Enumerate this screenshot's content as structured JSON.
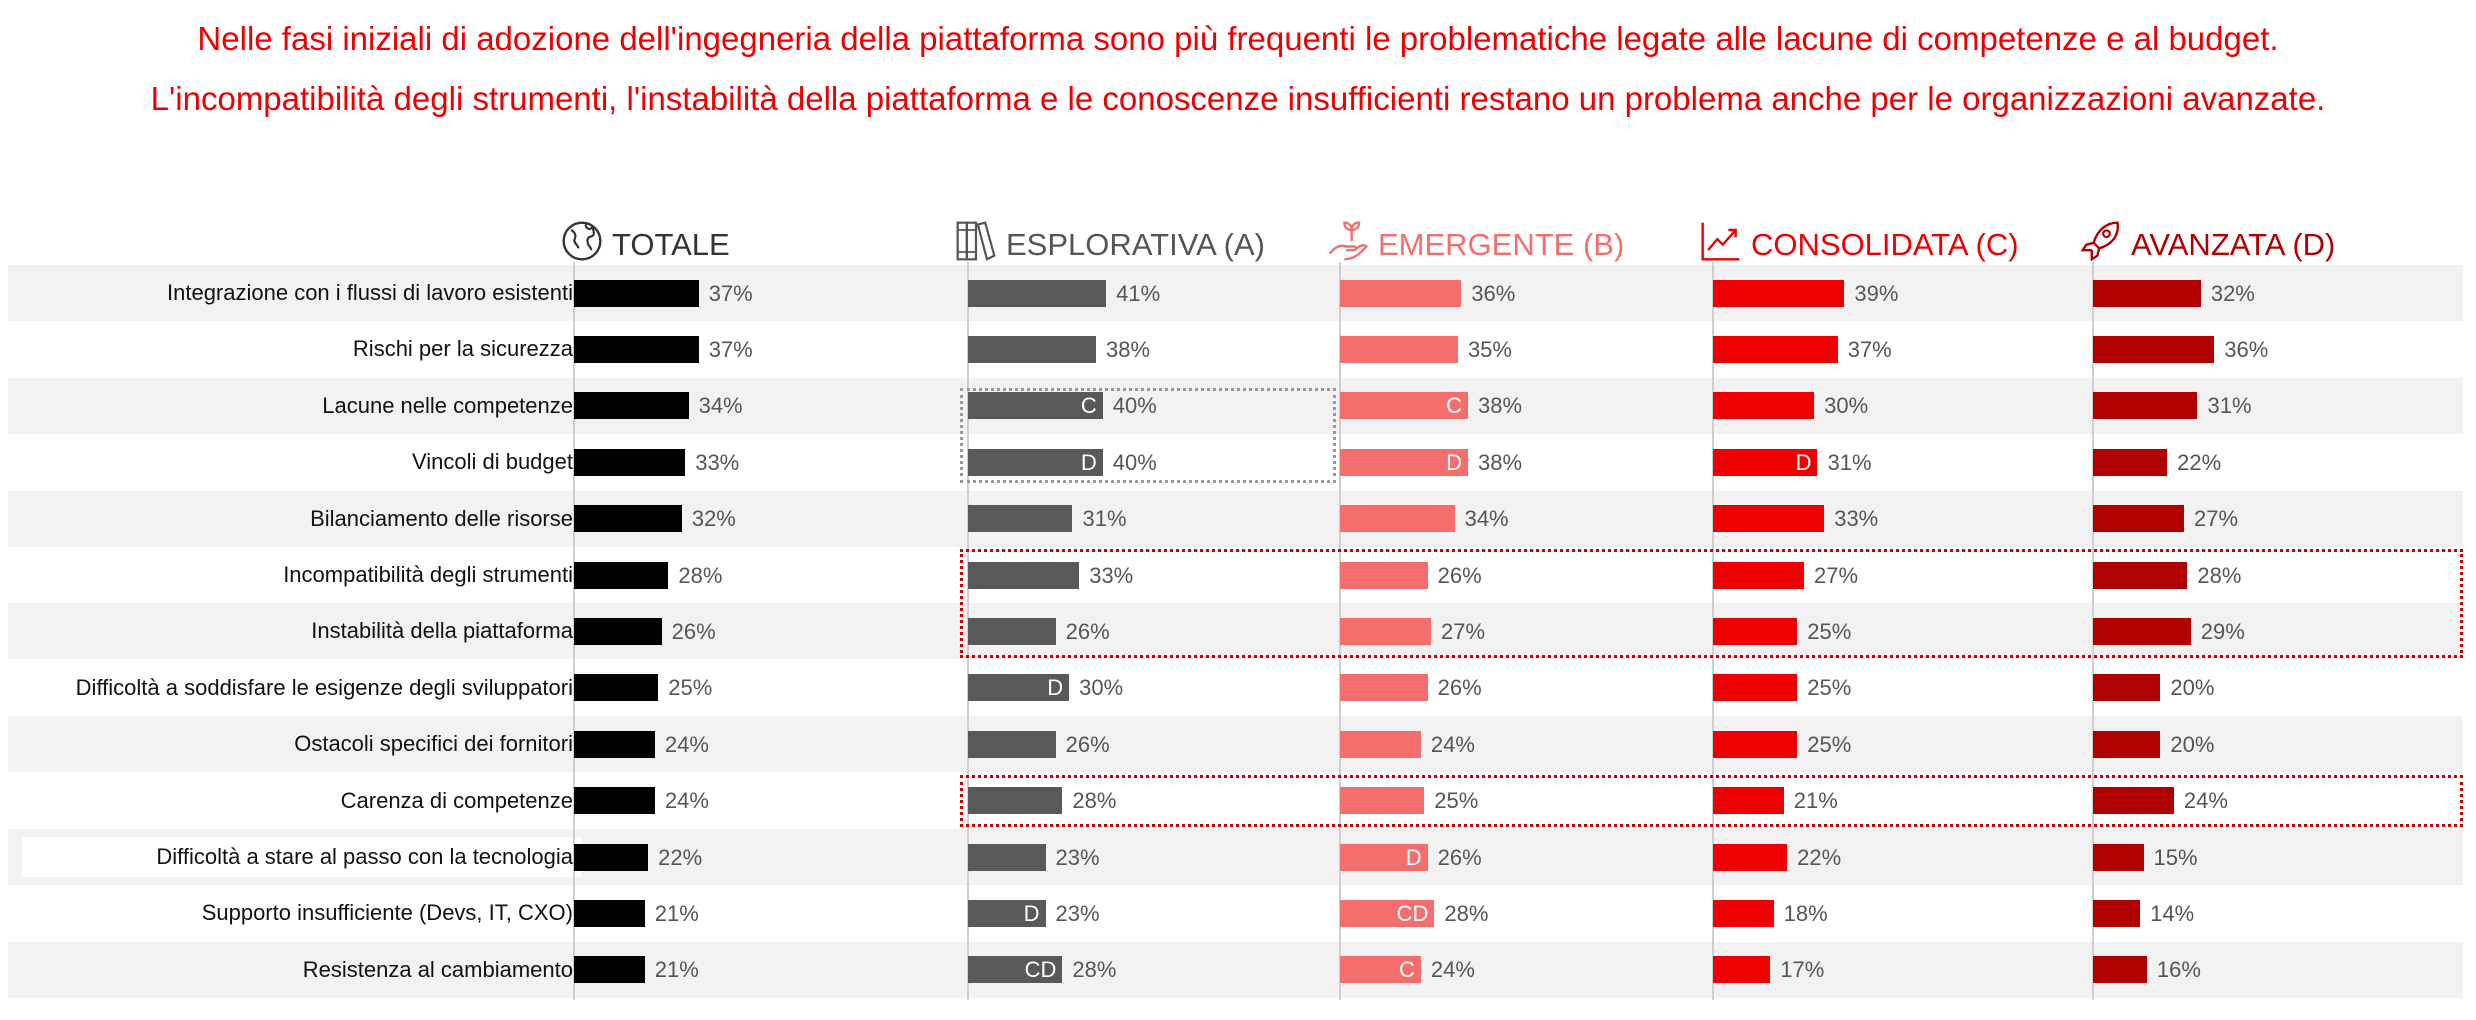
{
  "titles": [
    "Nelle fasi iniziali di adozione dell'ingegneria della piattaforma sono più frequenti le problematiche legate alle lacune di competenze e al budget.",
    "L'incompatibilità degli strumenti, l'instabilità della piattaforma e le conoscenze insufficienti restano un problema anche per le organizzazioni avanzate."
  ],
  "chart_data": {
    "type": "bar",
    "orientation": "horizontal",
    "unit": "%",
    "categories": [
      "Integrazione con i flussi di lavoro esistenti",
      "Rischi per la sicurezza",
      "Lacune nelle competenze",
      "Vincoli di budget",
      "Bilanciamento delle risorse",
      "Incompatibilità degli strumenti",
      "Instabilità della piattaforma",
      "Difficoltà a soddisfare le esigenze degli sviluppatori",
      "Ostacoli specifici dei fornitori",
      "Carenza di competenze",
      "Difficoltà a stare al passo con la tecnologia",
      "Supporto insufficiente (Devs, IT, CXO)",
      "Resistenza al cambiamento"
    ],
    "series": [
      {
        "name": "TOTALE",
        "icon": "globe-icon",
        "color": "#000000",
        "header_color": "#333333",
        "values": [
          37,
          37,
          34,
          33,
          32,
          28,
          26,
          25,
          24,
          24,
          22,
          21,
          21
        ],
        "sig": [
          "",
          "",
          "",
          "",
          "",
          "",
          "",
          "",
          "",
          "",
          "",
          "",
          ""
        ]
      },
      {
        "name": "ESPLORATIVA (A)",
        "icon": "books-icon",
        "color": "#595959",
        "header_color": "#555555",
        "values": [
          41,
          38,
          40,
          40,
          31,
          33,
          26,
          30,
          26,
          28,
          23,
          23,
          28
        ],
        "sig": [
          "",
          "",
          "C",
          "D",
          "",
          "",
          "",
          "D",
          "",
          "",
          "",
          "D",
          "CD"
        ]
      },
      {
        "name": "EMERGENTE (B)",
        "icon": "sprout-hand-icon",
        "color": "#f56e6e",
        "header_color": "#f56e6e",
        "values": [
          36,
          35,
          38,
          38,
          34,
          26,
          27,
          26,
          24,
          25,
          26,
          28,
          24
        ],
        "sig": [
          "",
          "",
          "C",
          "D",
          "",
          "",
          "",
          "",
          "",
          "",
          "D",
          "CD",
          "C"
        ]
      },
      {
        "name": "CONSOLIDATA (C)",
        "icon": "chart-up-icon",
        "color": "#ee0000",
        "header_color": "#ee0000",
        "values": [
          39,
          37,
          30,
          31,
          33,
          27,
          25,
          25,
          25,
          21,
          22,
          18,
          17
        ],
        "sig": [
          "",
          "",
          "",
          "D",
          "",
          "",
          "",
          "",
          "",
          "",
          "",
          "",
          ""
        ]
      },
      {
        "name": "AVANZATA (D)",
        "icon": "rocket-icon",
        "color": "#b00000",
        "header_color": "#b00000",
        "values": [
          32,
          36,
          31,
          22,
          27,
          28,
          29,
          20,
          20,
          24,
          15,
          14,
          16
        ],
        "sig": [
          "",
          "",
          "",
          "",
          "",
          "",
          "",
          "",
          "",
          "",
          "",
          "",
          ""
        ]
      }
    ],
    "highlights": [
      {
        "style": "gray-dotted",
        "series": [
          1,
          2
        ],
        "rows": [
          2,
          3
        ]
      },
      {
        "style": "red-dotted",
        "series": [
          1,
          2,
          3,
          4
        ],
        "rows": [
          5,
          6
        ]
      },
      {
        "style": "red-dotted",
        "series": [
          1,
          2,
          3,
          4
        ],
        "rows": [
          9
        ]
      }
    ]
  }
}
